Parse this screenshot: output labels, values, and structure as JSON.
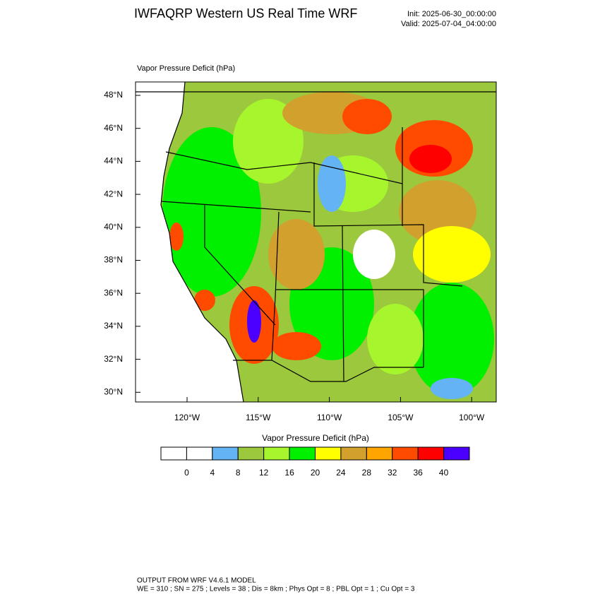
{
  "header": {
    "title": "IWFAQRP Western US Real Time WRF",
    "init": "Init: 2025-06-30_00:00:00",
    "valid": "Valid: 2025-07-04_04:00:00"
  },
  "map": {
    "title": "Vapor Pressure Deficit   (hPa)",
    "lat_labels": [
      "48°N",
      "46°N",
      "44°N",
      "42°N",
      "40°N",
      "38°N",
      "36°N",
      "34°N",
      "32°N",
      "30°N"
    ],
    "lon_labels": [
      "120°W",
      "115°W",
      "110°W",
      "105°W",
      "100°W"
    ]
  },
  "colorbar": {
    "title": "Vapor Pressure Deficit  (hPa)",
    "colors": [
      "#ffffff",
      "#ffffff",
      "#64b4f5",
      "#9bc83c",
      "#a6f52d",
      "#00f000",
      "#ffff00",
      "#d2a02d",
      "#ffa500",
      "#ff4b00",
      "#ff0000",
      "#4b00ff"
    ],
    "levels": [
      0,
      4,
      8,
      12,
      16,
      20,
      24,
      28,
      32,
      36,
      40
    ]
  },
  "footer": {
    "line1": "OUTPUT FROM WRF V4.6.1 MODEL",
    "line2": "WE = 310 ; SN = 275 ; Levels = 38 ; Dis = 8km ; Phys Opt = 8 ; PBL Opt = 1 ; Cu Opt = 3"
  }
}
